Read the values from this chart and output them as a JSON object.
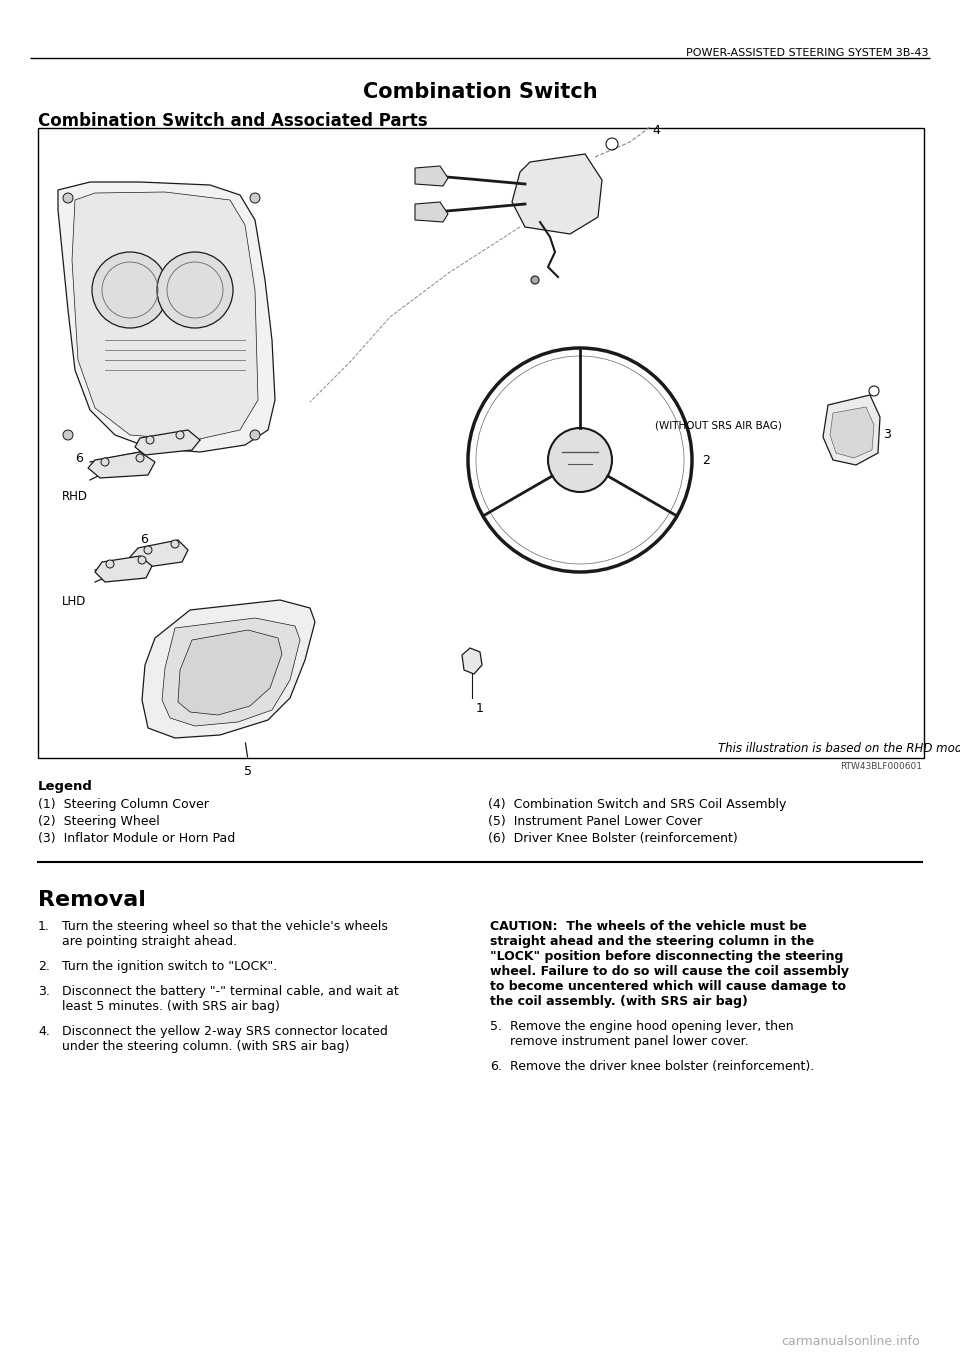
{
  "page_header_right": "POWER-ASSISTED STEERING SYSTEM 3B-43",
  "title": "Combination Switch",
  "subtitle": "Combination Switch and Associated Parts",
  "illustration_note": "This illustration is based on the RHD model.",
  "image_ref": "RTW43BLF000601",
  "legend_title": "Legend",
  "legend_left": [
    "(1)  Steering Column Cover",
    "(2)  Steering Wheel",
    "(3)  Inflator Module or Horn Pad"
  ],
  "legend_right": [
    "(4)  Combination Switch and SRS Coil Assembly",
    "(5)  Instrument Panel Lower Cover",
    "(6)  Driver Knee Bolster (reinforcement)"
  ],
  "section_title": "Removal",
  "removal_steps_left": [
    [
      "1.",
      "Turn the steering wheel so that the vehicle's wheels\nare pointing straight ahead."
    ],
    [
      "2.",
      "Turn the ignition switch to \"LOCK\"."
    ],
    [
      "3.",
      "Disconnect the battery \"-\" terminal cable, and wait at\nleast 5 minutes. (with SRS air bag)"
    ],
    [
      "4.",
      "Disconnect the yellow 2-way SRS connector located\nunder the steering column. (with SRS air bag)"
    ]
  ],
  "caution_bold": "CAUTION:  The wheels of the vehicle must be straight ahead and the steering column in the \"LOCK\" position before disconnecting the steering wheel. Failure to do so will cause the coil assembly to become uncentered which will cause damage to the coil assembly. (with SRS air bag)",
  "removal_steps_right": [
    [
      "5.",
      "Remove the engine hood opening lever, then\nremove instrument panel lower cover."
    ],
    [
      "6.",
      "Remove the driver knee bolster (reinforcement)."
    ]
  ],
  "watermark": "carmanualsonline.info",
  "bg_color": "#ffffff",
  "text_color": "#000000",
  "border_color": "#000000"
}
